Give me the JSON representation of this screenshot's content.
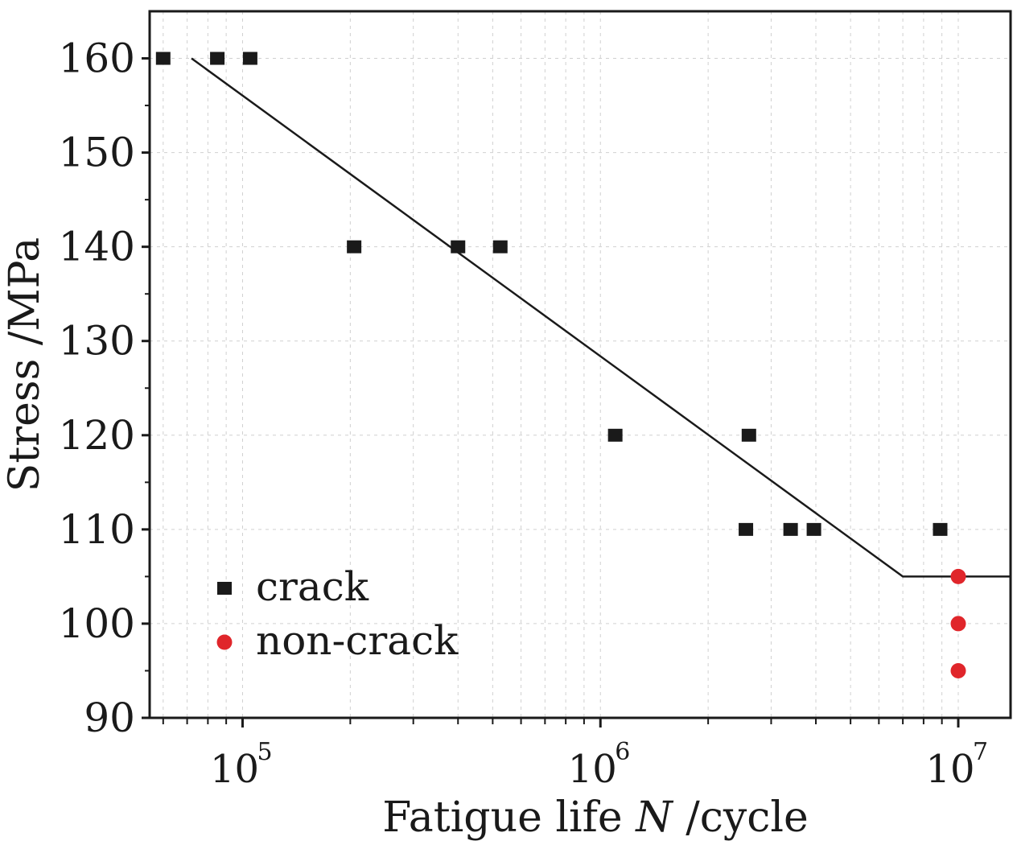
{
  "chart_data": {
    "type": "scatter",
    "xscale": "log",
    "xlabel": {
      "text": "Fatigue life",
      "var": "N",
      "unit": "/cycle"
    },
    "ylabel": "Stress /MPa",
    "xlim": [
      55000,
      14000000
    ],
    "ylim": [
      90,
      165
    ],
    "yticks": [
      90,
      100,
      110,
      120,
      130,
      140,
      150,
      160
    ],
    "xticks": [
      {
        "value": 100000,
        "base": "10",
        "exp": "5"
      },
      {
        "value": 1000000,
        "base": "10",
        "exp": "6"
      },
      {
        "value": 10000000,
        "base": "10",
        "exp": "7"
      }
    ],
    "series": [
      {
        "name": "crack",
        "marker": "square",
        "color": "#1a1a1a",
        "points": [
          [
            60000,
            160
          ],
          [
            85000,
            160
          ],
          [
            105000,
            160
          ],
          [
            205000,
            140
          ],
          [
            400000,
            140
          ],
          [
            525000,
            140
          ],
          [
            1100000,
            120
          ],
          [
            2600000,
            120
          ],
          [
            2550000,
            110
          ],
          [
            3400000,
            110
          ],
          [
            3950000,
            110
          ],
          [
            8900000,
            110
          ]
        ]
      },
      {
        "name": "non-crack",
        "marker": "circle",
        "color": "#e0262b",
        "points": [
          [
            10000000,
            105
          ],
          [
            10000000,
            100
          ],
          [
            10000000,
            95
          ]
        ]
      }
    ],
    "fit_line": {
      "color": "#1a1a1a",
      "points": [
        [
          72000,
          160
        ],
        [
          7000000,
          105
        ],
        [
          14000000,
          105
        ]
      ]
    },
    "legend": {
      "position": "bottom-left"
    }
  }
}
